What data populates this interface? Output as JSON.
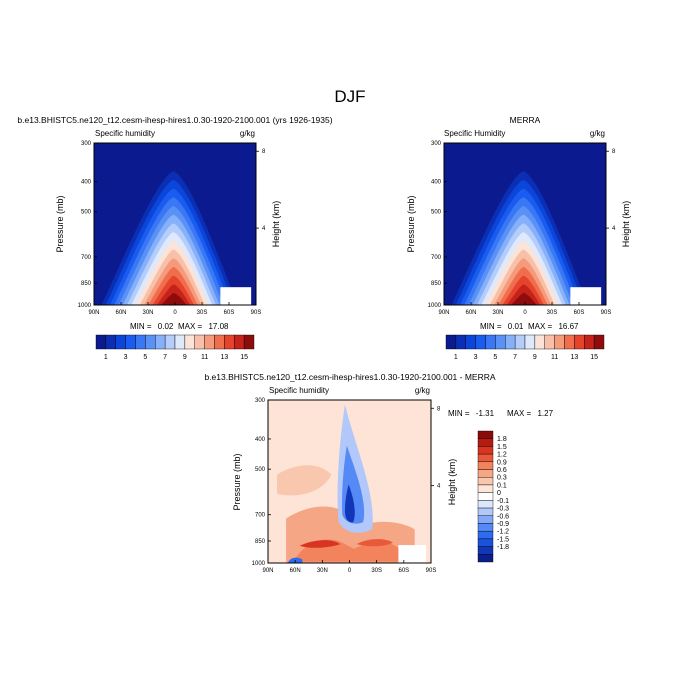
{
  "figure": {
    "title": "DJF"
  },
  "colors": {
    "abs_scale": [
      "#0b1a8e",
      "#0a2fb5",
      "#0b45d9",
      "#1b5cf0",
      "#3a77f5",
      "#5a91f7",
      "#86b0f9",
      "#b4cdfb",
      "#dfe9fc",
      "#fbe3d8",
      "#f8c0a8",
      "#f59a7a",
      "#f06d4e",
      "#e5432b",
      "#c5221a",
      "#8e0c0b"
    ],
    "diff_scale": [
      "#0a1f8c",
      "#1236b8",
      "#1a52db",
      "#2d6cf0",
      "#5589f5",
      "#83a8f8",
      "#b2c8fa",
      "#dde7fc",
      "#ffffff",
      "#fde6d9",
      "#f9c7ae",
      "#f5a684",
      "#f2835c",
      "#e8593a",
      "#d73421",
      "#b61b12",
      "#8b0a0a"
    ],
    "panel_fill": "#0b1a8e",
    "diff_fill": "#fde4d6"
  },
  "chart_data": [
    {
      "type": "heatmap",
      "id": "model",
      "title": "b.e13.BHISTC5.ne120_t12.cesm-ihesp-hires1.0.30-1920-2100.001 (yrs 1926-1935)",
      "left_label": "Specific humidity",
      "right_label": "g/kg",
      "ylabel": "Pressure (mb)",
      "ylabel_right": "Height (km)",
      "xticks": [
        "90N",
        "60N",
        "30N",
        "0",
        "30S",
        "60S",
        "90S"
      ],
      "x_values": [
        90,
        60,
        30,
        0,
        -30,
        -60,
        -90
      ],
      "yticks": [
        "300",
        "400",
        "500",
        "700",
        "850",
        "1000"
      ],
      "y_values": [
        300,
        400,
        500,
        700,
        850,
        1000
      ],
      "right_ticks": [
        "8",
        "4"
      ],
      "right_values_km": [
        8,
        4
      ],
      "ylim": [
        1000,
        300
      ],
      "xlim": [
        90,
        -90
      ],
      "min_label": "MIN =",
      "min_value": "0.02",
      "max_label": "MAX =",
      "max_value": "17.08",
      "peak_lat": 0,
      "peak_value": 17.08,
      "colorbar": {
        "orientation": "horizontal",
        "labels": [
          "1",
          "3",
          "5",
          "7",
          "9",
          "11",
          "13",
          "15"
        ],
        "levels": [
          1,
          2,
          3,
          4,
          5,
          6,
          7,
          8,
          9,
          10,
          11,
          12,
          13,
          14,
          15
        ]
      }
    },
    {
      "type": "heatmap",
      "id": "merra",
      "title": "MERRA",
      "left_label": "Specific Humidity",
      "right_label": "g/kg",
      "ylabel": "Pressure (mb)",
      "ylabel_right": "Height (km)",
      "xticks": [
        "90N",
        "60N",
        "30N",
        "0",
        "30S",
        "60S",
        "90S"
      ],
      "x_values": [
        90,
        60,
        30,
        0,
        -30,
        -60,
        -90
      ],
      "yticks": [
        "300",
        "400",
        "500",
        "700",
        "850",
        "1000"
      ],
      "y_values": [
        300,
        400,
        500,
        700,
        850,
        1000
      ],
      "right_ticks": [
        "8",
        "4"
      ],
      "right_values_km": [
        8,
        4
      ],
      "ylim": [
        1000,
        300
      ],
      "xlim": [
        90,
        -90
      ],
      "min_label": "MIN =",
      "min_value": "0.01",
      "max_label": "MAX =",
      "max_value": "16.67",
      "peak_lat": 0,
      "peak_value": 16.67,
      "colorbar": {
        "orientation": "horizontal",
        "labels": [
          "1",
          "3",
          "5",
          "7",
          "9",
          "11",
          "13",
          "15"
        ],
        "levels": [
          1,
          2,
          3,
          4,
          5,
          6,
          7,
          8,
          9,
          10,
          11,
          12,
          13,
          14,
          15
        ]
      }
    },
    {
      "type": "heatmap",
      "id": "diff",
      "title": "b.e13.BHISTC5.ne120_t12.cesm-ihesp-hires1.0.30-1920-2100.001 - MERRA",
      "left_label": "Specific humidity",
      "right_label": "g/kg",
      "ylabel": "Pressure (mb)",
      "ylabel_right": "Height (km)",
      "xticks": [
        "90N",
        "60N",
        "30N",
        "0",
        "30S",
        "60S",
        "90S"
      ],
      "x_values": [
        90,
        60,
        30,
        0,
        -30,
        -60,
        -90
      ],
      "yticks": [
        "300",
        "400",
        "500",
        "700",
        "850",
        "1000"
      ],
      "y_values": [
        300,
        400,
        500,
        700,
        850,
        1000
      ],
      "right_ticks": [
        "8",
        "4"
      ],
      "right_values_km": [
        8,
        4
      ],
      "ylim": [
        1000,
        300
      ],
      "xlim": [
        90,
        -90
      ],
      "min_label": "MIN =",
      "min_value": "-1.31",
      "max_label": "MAX =",
      "max_value": "1.27",
      "colorbar": {
        "orientation": "vertical",
        "labels": [
          "1.8",
          "1.5",
          "1.2",
          "0.9",
          "0.6",
          "0.3",
          "0.1",
          "0",
          "-0.1",
          "-0.3",
          "-0.6",
          "-0.9",
          "-1.2",
          "-1.5",
          "-1.8"
        ]
      }
    }
  ]
}
